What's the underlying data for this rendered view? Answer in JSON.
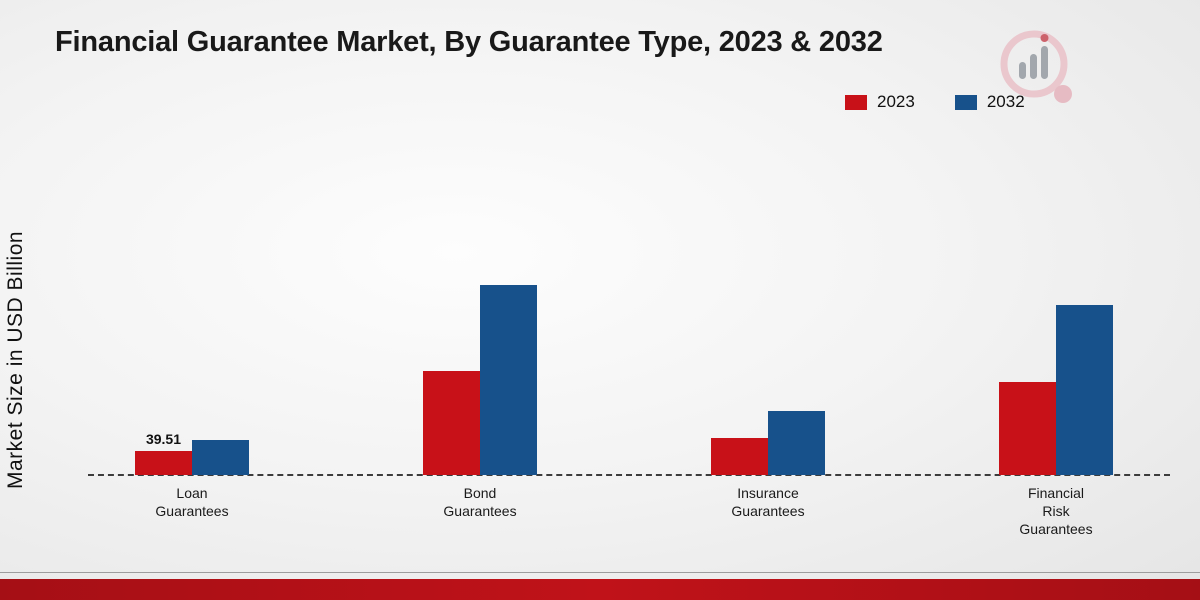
{
  "title": "Financial Guarantee Market, By Guarantee Type, 2023 & 2032",
  "ylabel": "Market Size in USD Billion",
  "branding": {
    "logo_name": "bar-chart-magnifier-logo"
  },
  "chart_data": {
    "type": "bar",
    "title": "Financial Guarantee Market, By Guarantee Type, 2023 & 2032",
    "xlabel": "",
    "ylabel": "Market Size in USD Billion",
    "categories": [
      "Loan Guarantees",
      "Bond Guarantees",
      "Insurance Guarantees",
      "Financial Risk Guarantees"
    ],
    "tick_labels": [
      "Loan\nGuarantees",
      "Bond\nGuarantees",
      "Insurance\nGuarantees",
      "Financial\nRisk\nGuarantees"
    ],
    "series": [
      {
        "name": "2023",
        "color": "#c81118",
        "values": [
          39.51,
          172,
          61,
          154
        ],
        "labels": [
          "39.51",
          "",
          "",
          ""
        ]
      },
      {
        "name": "2032",
        "color": "#17518b",
        "values": [
          58,
          315,
          106,
          282
        ],
        "labels": [
          "",
          "",
          "",
          ""
        ]
      }
    ],
    "ylim": [
      0,
      350
    ],
    "grid": false,
    "axis_style": "dashed-baseline-only",
    "legend_position": "top-right"
  }
}
